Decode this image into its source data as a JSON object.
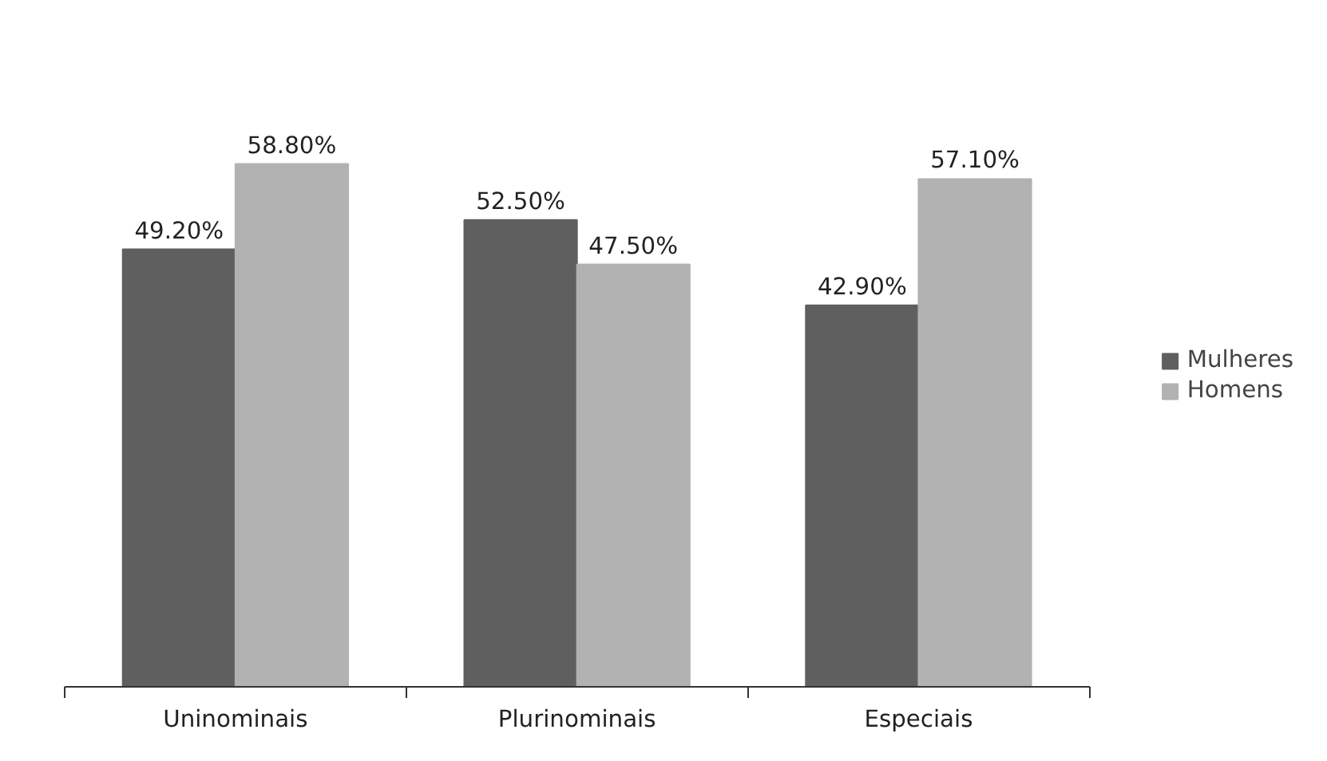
{
  "chart_data": {
    "type": "bar",
    "categories": [
      "Uninominais",
      "Plurinominais",
      "Especiais"
    ],
    "series": [
      {
        "name": "Mulheres",
        "color": "#5f5f5f",
        "values": [
          49.2,
          52.5,
          42.9
        ],
        "value_labels": [
          "49.20%",
          "52.50%",
          "42.90%"
        ]
      },
      {
        "name": "Homens",
        "color": "#b2b2b2",
        "values": [
          58.8,
          47.5,
          57.1
        ],
        "value_labels": [
          "58.80%",
          "47.50%",
          "57.10%"
        ]
      }
    ],
    "legend": "right",
    "grid": false
  }
}
